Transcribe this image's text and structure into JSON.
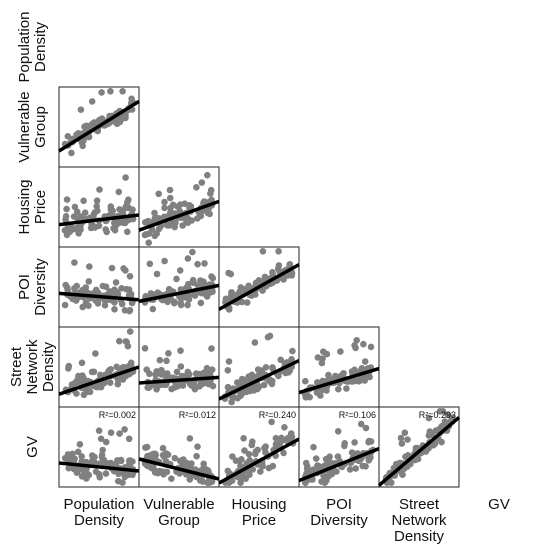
{
  "chart_data": {
    "type": "scatter",
    "variables": [
      {
        "key": "popden",
        "lines": [
          "Population",
          "Density"
        ]
      },
      {
        "key": "vuln",
        "lines": [
          "Vulnerable",
          "Group"
        ]
      },
      {
        "key": "house",
        "lines": [
          "Housing",
          "Price"
        ]
      },
      {
        "key": "poi",
        "lines": [
          "POI",
          "Diversity"
        ]
      },
      {
        "key": "street",
        "lines": [
          "Street",
          "Network",
          "Density"
        ]
      },
      {
        "key": "gv",
        "lines": [
          "GV"
        ]
      }
    ],
    "r2_labels": [
      {
        "col": 0,
        "text": "R²=0.002"
      },
      {
        "col": 1,
        "text": "R²=0.012"
      },
      {
        "col": 2,
        "text": "R²=0.240"
      },
      {
        "col": 3,
        "text": "R²=0.106"
      },
      {
        "col": 4,
        "text": "R²=0.293"
      }
    ],
    "panels": [
      {
        "row": 1,
        "col": 0,
        "slope": 0.62,
        "intercept": 0.2,
        "noise": 0.12
      },
      {
        "row": 2,
        "col": 0,
        "slope": 0.12,
        "intercept": 0.28,
        "noise": 0.2
      },
      {
        "row": 2,
        "col": 1,
        "slope": 0.36,
        "intercept": 0.21,
        "noise": 0.2
      },
      {
        "row": 3,
        "col": 0,
        "slope": -0.08,
        "intercept": 0.42,
        "noise": 0.16
      },
      {
        "row": 3,
        "col": 1,
        "slope": 0.2,
        "intercept": 0.32,
        "noise": 0.16
      },
      {
        "row": 3,
        "col": 2,
        "slope": 0.56,
        "intercept": 0.22,
        "noise": 0.13
      },
      {
        "row": 4,
        "col": 0,
        "slope": 0.34,
        "intercept": 0.16,
        "noise": 0.14
      },
      {
        "row": 4,
        "col": 1,
        "slope": 0.07,
        "intercept": 0.3,
        "noise": 0.14
      },
      {
        "row": 4,
        "col": 2,
        "slope": 0.48,
        "intercept": 0.1,
        "noise": 0.14
      },
      {
        "row": 4,
        "col": 3,
        "slope": 0.3,
        "intercept": 0.18,
        "noise": 0.12
      },
      {
        "row": 5,
        "col": 0,
        "slope": -0.1,
        "intercept": 0.3,
        "noise": 0.2
      },
      {
        "row": 5,
        "col": 1,
        "slope": -0.25,
        "intercept": 0.35,
        "noise": 0.2
      },
      {
        "row": 5,
        "col": 2,
        "slope": 0.55,
        "intercept": 0.05,
        "noise": 0.18
      },
      {
        "row": 5,
        "col": 3,
        "slope": 0.4,
        "intercept": 0.08,
        "noise": 0.18
      },
      {
        "row": 5,
        "col": 4,
        "slope": 0.85,
        "intercept": 0.02,
        "noise": 0.13
      }
    ],
    "point_color": "#808080",
    "line_color": "#000000",
    "grid": false
  }
}
